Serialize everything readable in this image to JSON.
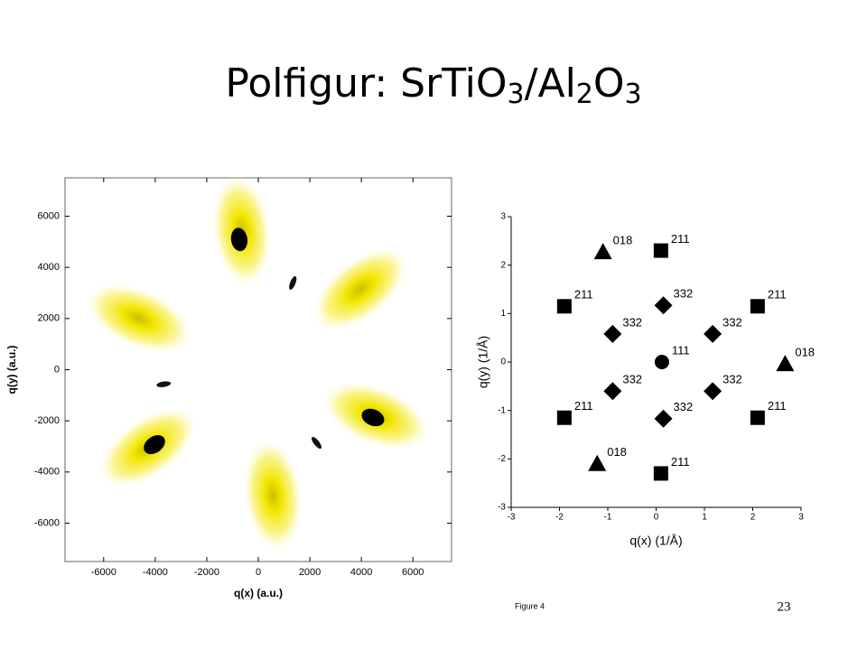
{
  "title": [
    {
      "text": "Polfigur: SrTiO",
      "sub": false
    },
    {
      "text": "3",
      "sub": true
    },
    {
      "text": "/Al",
      "sub": false
    },
    {
      "text": "2",
      "sub": true
    },
    {
      "text": "O",
      "sub": false
    },
    {
      "text": "3",
      "sub": true
    }
  ],
  "chart_data": [
    {
      "type": "pole_figure",
      "x_label": "q(x) (a.u.)",
      "y_label": "q(y) (a.u.)",
      "xlim": [
        -7500,
        7500
      ],
      "ylim": [
        -7500,
        7500
      ],
      "xticks": [
        -6000,
        -4000,
        -2000,
        0,
        2000,
        4000,
        6000
      ],
      "yticks": [
        -6000,
        -4000,
        -2000,
        0,
        2000,
        4000,
        6000
      ],
      "series": [
        {
          "color": "#f2e600",
          "x": [
            -640,
            3960,
            -4630,
            -4280,
            4560,
            570
          ],
          "values": [
            5440,
            3150,
            2010,
            -3040,
            -1800,
            -4910
          ]
        },
        {
          "color": "#000000",
          "x": [
            -740,
            -4030,
            4450
          ],
          "values": [
            5090,
            -2930,
            -1870
          ]
        },
        {
          "color": "#111111",
          "x": [
            1340,
            -3670,
            2260
          ],
          "values": [
            3390,
            -570,
            -2860
          ]
        }
      ]
    },
    {
      "type": "scatter",
      "x_label": "q(x) (1/Å)",
      "y_label": "q(y) (1/Å)",
      "xlim": [
        -3,
        3
      ],
      "ylim": [
        -3,
        3
      ],
      "xticks": [
        -3,
        -2,
        -1,
        0,
        1,
        2,
        3
      ],
      "yticks": [
        -3,
        -2,
        -1,
        0,
        1,
        2,
        3
      ],
      "color": "#000000",
      "series": [
        {
          "marker": "square",
          "x": [
            0.1,
            -1.9,
            2.1,
            -1.9,
            2.1,
            0.1
          ],
          "values": [
            2.3,
            1.15,
            1.15,
            -1.15,
            -1.15,
            -2.3
          ],
          "labels": [
            "211",
            "211",
            "211",
            "211",
            "211",
            "211"
          ]
        },
        {
          "marker": "diamond",
          "x": [
            0.15,
            -0.9,
            1.17,
            -0.9,
            1.17,
            0.15
          ],
          "values": [
            1.17,
            0.58,
            0.58,
            -0.6,
            -0.6,
            -1.17
          ],
          "labels": [
            "332",
            "332",
            "332",
            "332",
            "332",
            "332"
          ]
        },
        {
          "marker": "triangle",
          "x": [
            -1.1,
            2.67,
            -1.22
          ],
          "values": [
            2.27,
            -0.04,
            -2.1
          ],
          "labels": [
            "018",
            "018",
            "018"
          ]
        },
        {
          "marker": "circle",
          "x": [
            0.12
          ],
          "values": [
            0.0
          ],
          "labels": [
            "111"
          ]
        }
      ]
    }
  ],
  "figure_label": "Figure 4",
  "page_number": "23"
}
